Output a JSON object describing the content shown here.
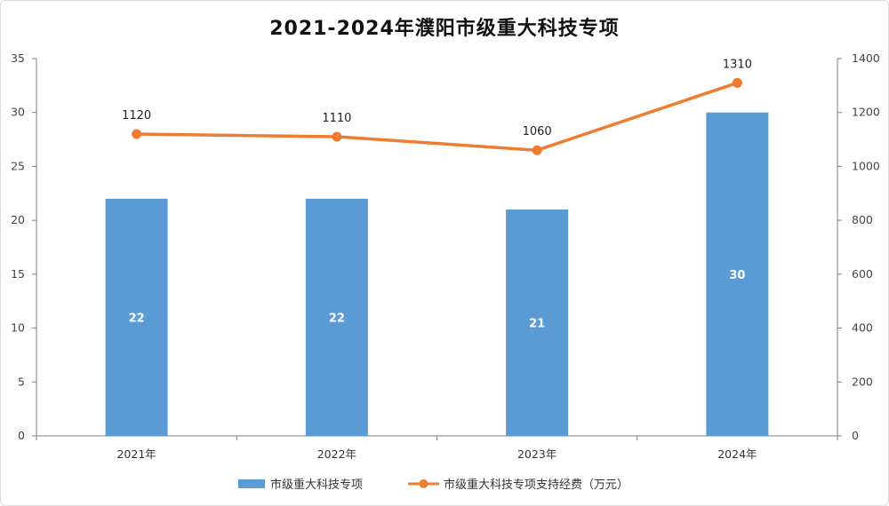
{
  "chart_data": {
    "type": "bar",
    "title": "2021-2024年濮阳市级重大科技专项",
    "categories": [
      "2021年",
      "2022年",
      "2023年",
      "2024年"
    ],
    "series": [
      {
        "name": "市级重大科技专项",
        "type": "bar",
        "axis": "left",
        "values": [
          22,
          22,
          21,
          30
        ]
      },
      {
        "name": "市级重大科技专项支持经费（万元）",
        "type": "line",
        "axis": "right",
        "values": [
          1120,
          1110,
          1060,
          1310
        ]
      }
    ],
    "ylim_left": [
      0,
      35
    ],
    "ylim_right": [
      0,
      1400
    ],
    "yticks_left": [
      "0",
      "5",
      "10",
      "15",
      "20",
      "25",
      "30",
      "35"
    ],
    "yticks_right": [
      "0",
      "200",
      "400",
      "600",
      "800",
      "1000",
      "1200",
      "1400"
    ],
    "grid": false,
    "legend_position": "bottom",
    "colors": {
      "bar": "#5b9bd5",
      "line": "#ed7d31",
      "axis": "#7f7f7f"
    }
  }
}
